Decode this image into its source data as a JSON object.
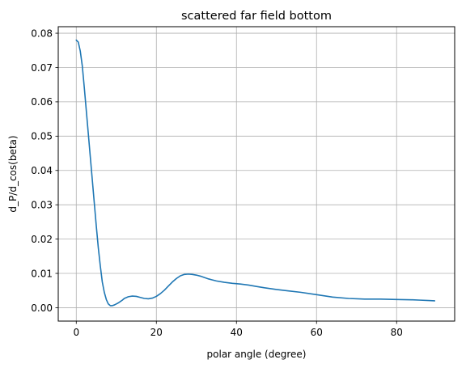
{
  "chart_data": {
    "type": "line",
    "title": "scattered far field bottom",
    "xlabel": "polar angle (degree)",
    "ylabel": "d_P/d_cos(beta)",
    "xlim": [
      -4.5,
      94.5
    ],
    "ylim": [
      -0.0039,
      0.0819
    ],
    "xticks": [
      0,
      20,
      40,
      60,
      80
    ],
    "xtick_labels": [
      "0",
      "20",
      "40",
      "60",
      "80"
    ],
    "yticks": [
      0.0,
      0.01,
      0.02,
      0.03,
      0.04,
      0.05,
      0.06,
      0.07,
      0.08
    ],
    "ytick_labels": [
      "0.00",
      "0.01",
      "0.02",
      "0.03",
      "0.04",
      "0.05",
      "0.06",
      "0.07",
      "0.08"
    ],
    "grid": true,
    "line_color": "#1f77b4",
    "series": [
      {
        "name": "d_P/d_cos(beta)",
        "x": [
          0,
          0.5,
          1,
          1.5,
          2,
          2.5,
          3,
          3.5,
          4,
          4.5,
          5,
          5.5,
          6,
          6.5,
          7,
          7.5,
          8,
          8.5,
          9,
          9.5,
          10,
          10.5,
          11,
          11.5,
          12,
          13,
          14,
          15,
          16,
          17,
          18,
          19,
          20,
          21,
          22,
          23,
          24,
          25,
          26,
          27,
          28,
          29,
          30,
          31,
          32,
          33,
          34,
          35,
          37,
          39,
          41,
          43,
          45,
          47,
          50,
          53,
          56,
          60,
          64,
          68,
          72,
          76,
          80,
          84,
          86,
          88,
          89.5
        ],
        "y": [
          0.078,
          0.0774,
          0.0748,
          0.0705,
          0.0642,
          0.0575,
          0.0508,
          0.044,
          0.0373,
          0.0305,
          0.0238,
          0.0175,
          0.0122,
          0.0075,
          0.0045,
          0.0024,
          0.0011,
          0.0006,
          0.0006,
          0.0008,
          0.0011,
          0.0014,
          0.0018,
          0.0022,
          0.0027,
          0.0032,
          0.0034,
          0.0033,
          0.003,
          0.0027,
          0.0026,
          0.0028,
          0.0033,
          0.0041,
          0.0051,
          0.0063,
          0.0075,
          0.0085,
          0.0093,
          0.0097,
          0.0098,
          0.0097,
          0.0095,
          0.0092,
          0.0088,
          0.0084,
          0.0081,
          0.0078,
          0.0074,
          0.0071,
          0.0069,
          0.0066,
          0.0062,
          0.0058,
          0.0053,
          0.0049,
          0.0045,
          0.0038,
          0.0031,
          0.0027,
          0.0025,
          0.0025,
          0.0024,
          0.0023,
          0.0022,
          0.0021,
          0.002
        ]
      }
    ]
  }
}
